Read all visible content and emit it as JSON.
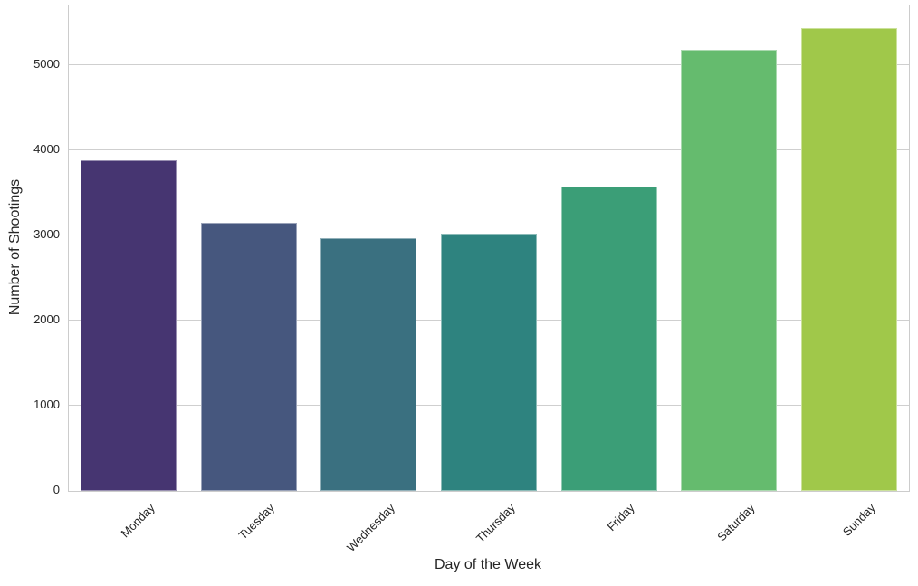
{
  "chart_data": {
    "type": "bar",
    "title": "",
    "xlabel": "Day of the Week",
    "ylabel": "Number of Shootings",
    "categories": [
      "Monday",
      "Tuesday",
      "Wednesday",
      "Thursday",
      "Friday",
      "Saturday",
      "Sunday"
    ],
    "values": [
      3884,
      3149,
      2967,
      3020,
      3572,
      5181,
      5438
    ],
    "bar_colors": [
      "#463571",
      "#46577E",
      "#3A7080",
      "#2E837F",
      "#3B9E77",
      "#65BB6E",
      "#A0C84A"
    ],
    "yticks": [
      0,
      1000,
      2000,
      3000,
      4000,
      5000
    ],
    "ylim": [
      0,
      5700
    ],
    "grid": true,
    "grid_color": "#cfcfcf",
    "spine_color": "#cccccc",
    "background": "#ffffff",
    "text_color": "#262626",
    "legend": "none",
    "bar_width_fraction": 0.8,
    "x_tick_rotation_deg": 45
  }
}
